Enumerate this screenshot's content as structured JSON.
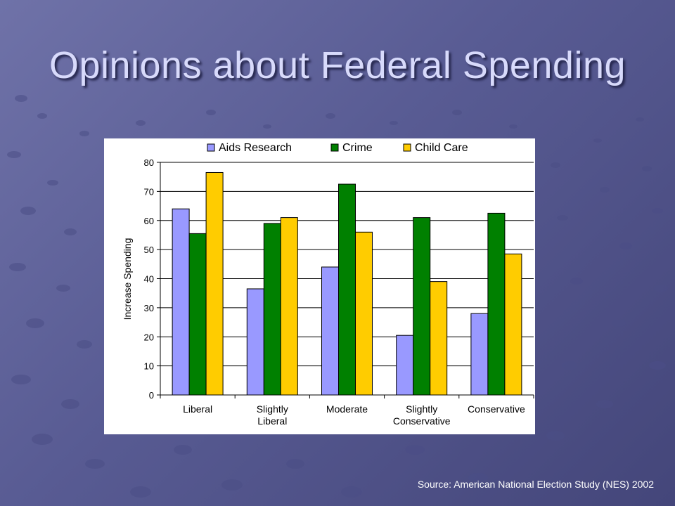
{
  "slide": {
    "title": "Opinions about Federal Spending",
    "source": "Source: American National Election Study (NES) 2002"
  },
  "colors": {
    "background": "#585b93",
    "title": "#d8dafb",
    "series": [
      "#9999ff",
      "#008000",
      "#ffcc00"
    ]
  },
  "chart_data": {
    "type": "bar",
    "title": "",
    "xlabel": "",
    "ylabel": "Increase Spending",
    "ylim": [
      0,
      80
    ],
    "yticks": [
      0,
      10,
      20,
      30,
      40,
      50,
      60,
      70,
      80
    ],
    "grid": true,
    "legend": "top",
    "categories": [
      "Liberal",
      "Slightly Liberal",
      "Moderate",
      "Slightly Conservative",
      "Conservative"
    ],
    "category_lines": [
      [
        "Liberal"
      ],
      [
        "Slightly",
        "Liberal"
      ],
      [
        "Moderate"
      ],
      [
        "Slightly",
        "Conservative"
      ],
      [
        "Conservative"
      ]
    ],
    "series": [
      {
        "name": "Aids Research",
        "color": "#9999ff",
        "values": [
          64,
          36.5,
          44,
          20.5,
          28
        ]
      },
      {
        "name": "Crime",
        "color": "#008000",
        "values": [
          55.5,
          59,
          72.5,
          61,
          62.5
        ]
      },
      {
        "name": "Child Care",
        "color": "#ffcc00",
        "values": [
          76.5,
          61,
          56,
          39,
          48.5
        ]
      }
    ]
  }
}
